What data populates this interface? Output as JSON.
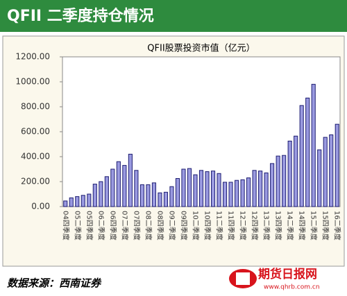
{
  "header": "QFII 二季度持仓情况",
  "chart_data": {
    "type": "bar",
    "title": "QFII股票投资市值（亿元）",
    "categories": [
      "04四季度",
      null,
      "05二季度",
      null,
      "05四季度",
      null,
      "06二季度",
      null,
      "06四季度",
      null,
      "07二季度",
      null,
      "07四季度",
      null,
      "08二季度",
      null,
      "08四季度",
      null,
      "09二季度",
      null,
      "09四季度",
      null,
      "10二季度",
      null,
      "10四季度",
      null,
      "11二季度",
      null,
      "11四季度",
      null,
      "12二季度",
      null,
      "12四季度",
      null,
      "13二季度",
      null,
      "13四季度",
      null,
      "14二季度",
      null,
      "14四季度",
      null,
      "15二季度",
      null,
      "15四季度",
      null,
      "16二季度"
    ],
    "values": [
      45,
      70,
      80,
      90,
      100,
      180,
      200,
      240,
      300,
      360,
      330,
      420,
      290,
      175,
      175,
      190,
      110,
      115,
      160,
      225,
      300,
      305,
      255,
      290,
      280,
      285,
      265,
      195,
      195,
      210,
      215,
      230,
      290,
      285,
      270,
      345,
      405,
      410,
      525,
      565,
      810,
      870,
      980,
      455,
      555,
      575,
      660
    ],
    "color": "#9a9ae0",
    "ylim": [
      0,
      1200
    ],
    "yticks": [
      {
        "value": 0,
        "label": "0.00"
      },
      {
        "value": 200,
        "label": "200.00"
      },
      {
        "value": 400,
        "label": "400.00"
      },
      {
        "value": 600,
        "label": "600.00"
      },
      {
        "value": 800,
        "label": "800.00"
      },
      {
        "value": 1000,
        "label": "1000.00"
      },
      {
        "value": 1200,
        "label": "1200.00"
      }
    ],
    "grid": false
  },
  "source": "数据来源：西南证券",
  "logo": {
    "name": "期货日报网",
    "url": "www.qhrb.com.cn"
  }
}
